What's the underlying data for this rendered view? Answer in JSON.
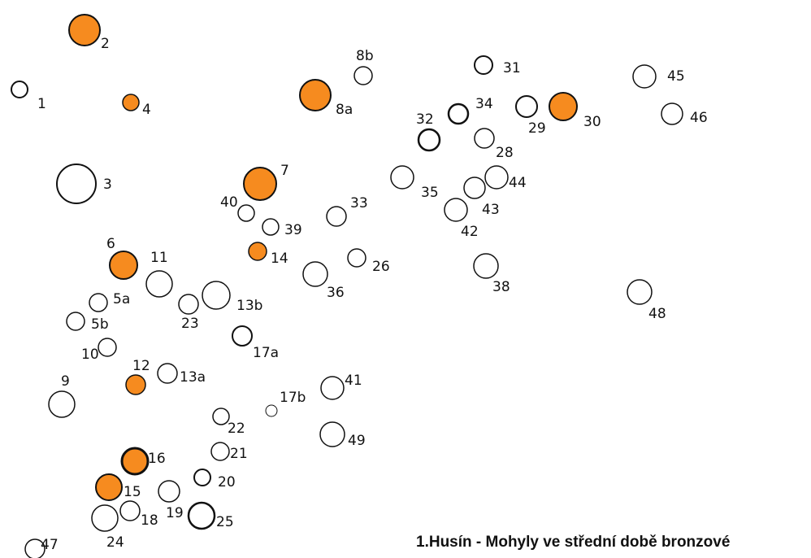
{
  "caption": "1.Husín - Mohyly ve střední době bronzové",
  "colors": {
    "middle_bronze": "#f68b1f",
    "other": "#ffffff",
    "outline": "#111111"
  },
  "mounds": [
    {
      "id": "1",
      "middle_bronze": false
    },
    {
      "id": "2",
      "middle_bronze": true
    },
    {
      "id": "3",
      "middle_bronze": false
    },
    {
      "id": "4",
      "middle_bronze": true
    },
    {
      "id": "5a",
      "middle_bronze": false
    },
    {
      "id": "5b",
      "middle_bronze": false
    },
    {
      "id": "6",
      "middle_bronze": true
    },
    {
      "id": "7",
      "middle_bronze": true
    },
    {
      "id": "8a",
      "middle_bronze": true
    },
    {
      "id": "8b",
      "middle_bronze": false
    },
    {
      "id": "9",
      "middle_bronze": false
    },
    {
      "id": "10",
      "middle_bronze": false
    },
    {
      "id": "11",
      "middle_bronze": false
    },
    {
      "id": "12",
      "middle_bronze": true
    },
    {
      "id": "13a",
      "middle_bronze": false
    },
    {
      "id": "13b",
      "middle_bronze": false
    },
    {
      "id": "14",
      "middle_bronze": true
    },
    {
      "id": "15",
      "middle_bronze": true
    },
    {
      "id": "16",
      "middle_bronze": true
    },
    {
      "id": "17a",
      "middle_bronze": false
    },
    {
      "id": "17b",
      "middle_bronze": false
    },
    {
      "id": "18",
      "middle_bronze": false
    },
    {
      "id": "19",
      "middle_bronze": false
    },
    {
      "id": "20",
      "middle_bronze": false
    },
    {
      "id": "21",
      "middle_bronze": false
    },
    {
      "id": "22",
      "middle_bronze": false
    },
    {
      "id": "23",
      "middle_bronze": false
    },
    {
      "id": "24",
      "middle_bronze": false
    },
    {
      "id": "25",
      "middle_bronze": false
    },
    {
      "id": "26",
      "middle_bronze": false
    },
    {
      "id": "28",
      "middle_bronze": false
    },
    {
      "id": "29",
      "middle_bronze": false
    },
    {
      "id": "30",
      "middle_bronze": true
    },
    {
      "id": "31",
      "middle_bronze": false
    },
    {
      "id": "32",
      "middle_bronze": false
    },
    {
      "id": "33",
      "middle_bronze": false
    },
    {
      "id": "34",
      "middle_bronze": false
    },
    {
      "id": "35",
      "middle_bronze": false
    },
    {
      "id": "36",
      "middle_bronze": false
    },
    {
      "id": "38",
      "middle_bronze": false
    },
    {
      "id": "39",
      "middle_bronze": false
    },
    {
      "id": "40",
      "middle_bronze": false
    },
    {
      "id": "41",
      "middle_bronze": false
    },
    {
      "id": "42",
      "middle_bronze": false
    },
    {
      "id": "43",
      "middle_bronze": false
    },
    {
      "id": "44",
      "middle_bronze": false
    },
    {
      "id": "45",
      "middle_bronze": false
    },
    {
      "id": "46",
      "middle_bronze": false
    },
    {
      "id": "47",
      "middle_bronze": false
    },
    {
      "id": "48",
      "middle_bronze": false
    },
    {
      "id": "49",
      "middle_bronze": false
    }
  ]
}
